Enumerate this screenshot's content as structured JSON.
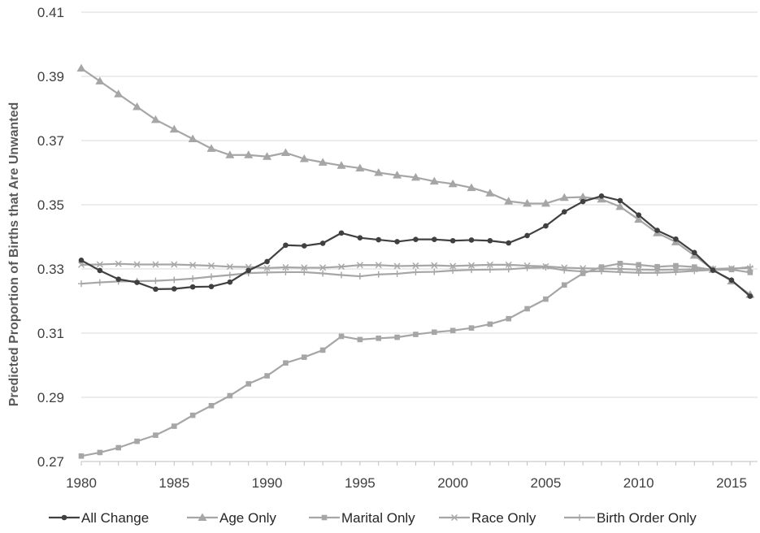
{
  "chart_data": {
    "type": "line",
    "ylabel": "Predicted Proportion of Births that Are Unwanted",
    "xlabel": "",
    "xlim": [
      1980,
      2016.4
    ],
    "ylim": [
      0.27,
      0.41
    ],
    "x_ticks": [
      1980,
      1985,
      1990,
      1995,
      2000,
      2005,
      2010,
      2015
    ],
    "y_ticks": [
      0.27,
      0.29,
      0.31,
      0.33,
      0.35,
      0.37,
      0.39,
      0.41
    ],
    "y_tick_labels": [
      "0.27",
      "0.29",
      "0.31",
      "0.33",
      "0.35",
      "0.37",
      "0.39",
      "0.41"
    ],
    "grid": "horizontal",
    "legend": "bottom",
    "x": [
      1980,
      1981,
      1982,
      1983,
      1984,
      1985,
      1986,
      1987,
      1988,
      1989,
      1990,
      1991,
      1992,
      1993,
      1994,
      1995,
      1996,
      1997,
      1998,
      1999,
      2000,
      2001,
      2002,
      2003,
      2004,
      2005,
      2006,
      2007,
      2008,
      2009,
      2010,
      2011,
      2012,
      2013,
      2014,
      2015,
      2016
    ],
    "series": [
      {
        "name": "All Change",
        "color": "#404040",
        "marker": "circle",
        "values": [
          0.3327,
          0.3295,
          0.3268,
          0.3258,
          0.3237,
          0.3238,
          0.3244,
          0.3245,
          0.3259,
          0.3295,
          0.3323,
          0.3374,
          0.3372,
          0.338,
          0.3412,
          0.3397,
          0.3391,
          0.3385,
          0.3392,
          0.3392,
          0.3388,
          0.339,
          0.3388,
          0.3381,
          0.3404,
          0.3434,
          0.3478,
          0.351,
          0.3527,
          0.3513,
          0.3468,
          0.342,
          0.3393,
          0.3351,
          0.3296,
          0.3265,
          0.3215
        ]
      },
      {
        "name": "Age Only",
        "color": "#a6a6a6",
        "marker": "triangle",
        "values": [
          0.3925,
          0.3885,
          0.3845,
          0.3805,
          0.3765,
          0.3735,
          0.3705,
          0.3675,
          0.3655,
          0.3655,
          0.365,
          0.3662,
          0.3643,
          0.3632,
          0.3622,
          0.3614,
          0.36,
          0.3592,
          0.3585,
          0.3573,
          0.3565,
          0.3553,
          0.3536,
          0.3511,
          0.3504,
          0.3504,
          0.3522,
          0.3524,
          0.3517,
          0.3494,
          0.3454,
          0.3412,
          0.3384,
          0.3342,
          0.3298,
          0.3262,
          0.322
        ]
      },
      {
        "name": "Marital Only",
        "color": "#a6a6a6",
        "marker": "square",
        "values": [
          0.2717,
          0.2728,
          0.2743,
          0.2763,
          0.2782,
          0.281,
          0.2844,
          0.2874,
          0.2905,
          0.2942,
          0.2967,
          0.3007,
          0.3025,
          0.3047,
          0.309,
          0.308,
          0.3084,
          0.3087,
          0.3096,
          0.3103,
          0.3108,
          0.3116,
          0.3128,
          0.3145,
          0.3176,
          0.3206,
          0.325,
          0.3286,
          0.3306,
          0.3317,
          0.3313,
          0.3307,
          0.331,
          0.3306,
          0.3297,
          0.3298,
          0.3289
        ]
      },
      {
        "name": "Race Only",
        "color": "#a6a6a6",
        "marker": "x",
        "values": [
          0.3313,
          0.3314,
          0.3316,
          0.3314,
          0.3314,
          0.3314,
          0.3312,
          0.331,
          0.3307,
          0.3306,
          0.3303,
          0.3305,
          0.3304,
          0.3304,
          0.3307,
          0.3312,
          0.3312,
          0.3309,
          0.331,
          0.3311,
          0.3309,
          0.3311,
          0.3313,
          0.3313,
          0.331,
          0.3308,
          0.3304,
          0.3302,
          0.3301,
          0.33,
          0.3298,
          0.3297,
          0.3298,
          0.3299,
          0.33,
          0.3302,
          0.3302
        ]
      },
      {
        "name": "Birth Order Only",
        "color": "#a6a6a6",
        "marker": "plus",
        "values": [
          0.3254,
          0.3258,
          0.3261,
          0.3262,
          0.3263,
          0.3266,
          0.327,
          0.3276,
          0.3281,
          0.3287,
          0.3289,
          0.329,
          0.329,
          0.3286,
          0.3281,
          0.3277,
          0.3283,
          0.3285,
          0.329,
          0.3291,
          0.3295,
          0.3297,
          0.3298,
          0.3299,
          0.3303,
          0.3305,
          0.3296,
          0.3292,
          0.3293,
          0.329,
          0.3288,
          0.3288,
          0.329,
          0.3294,
          0.3297,
          0.33,
          0.3306
        ]
      }
    ]
  }
}
